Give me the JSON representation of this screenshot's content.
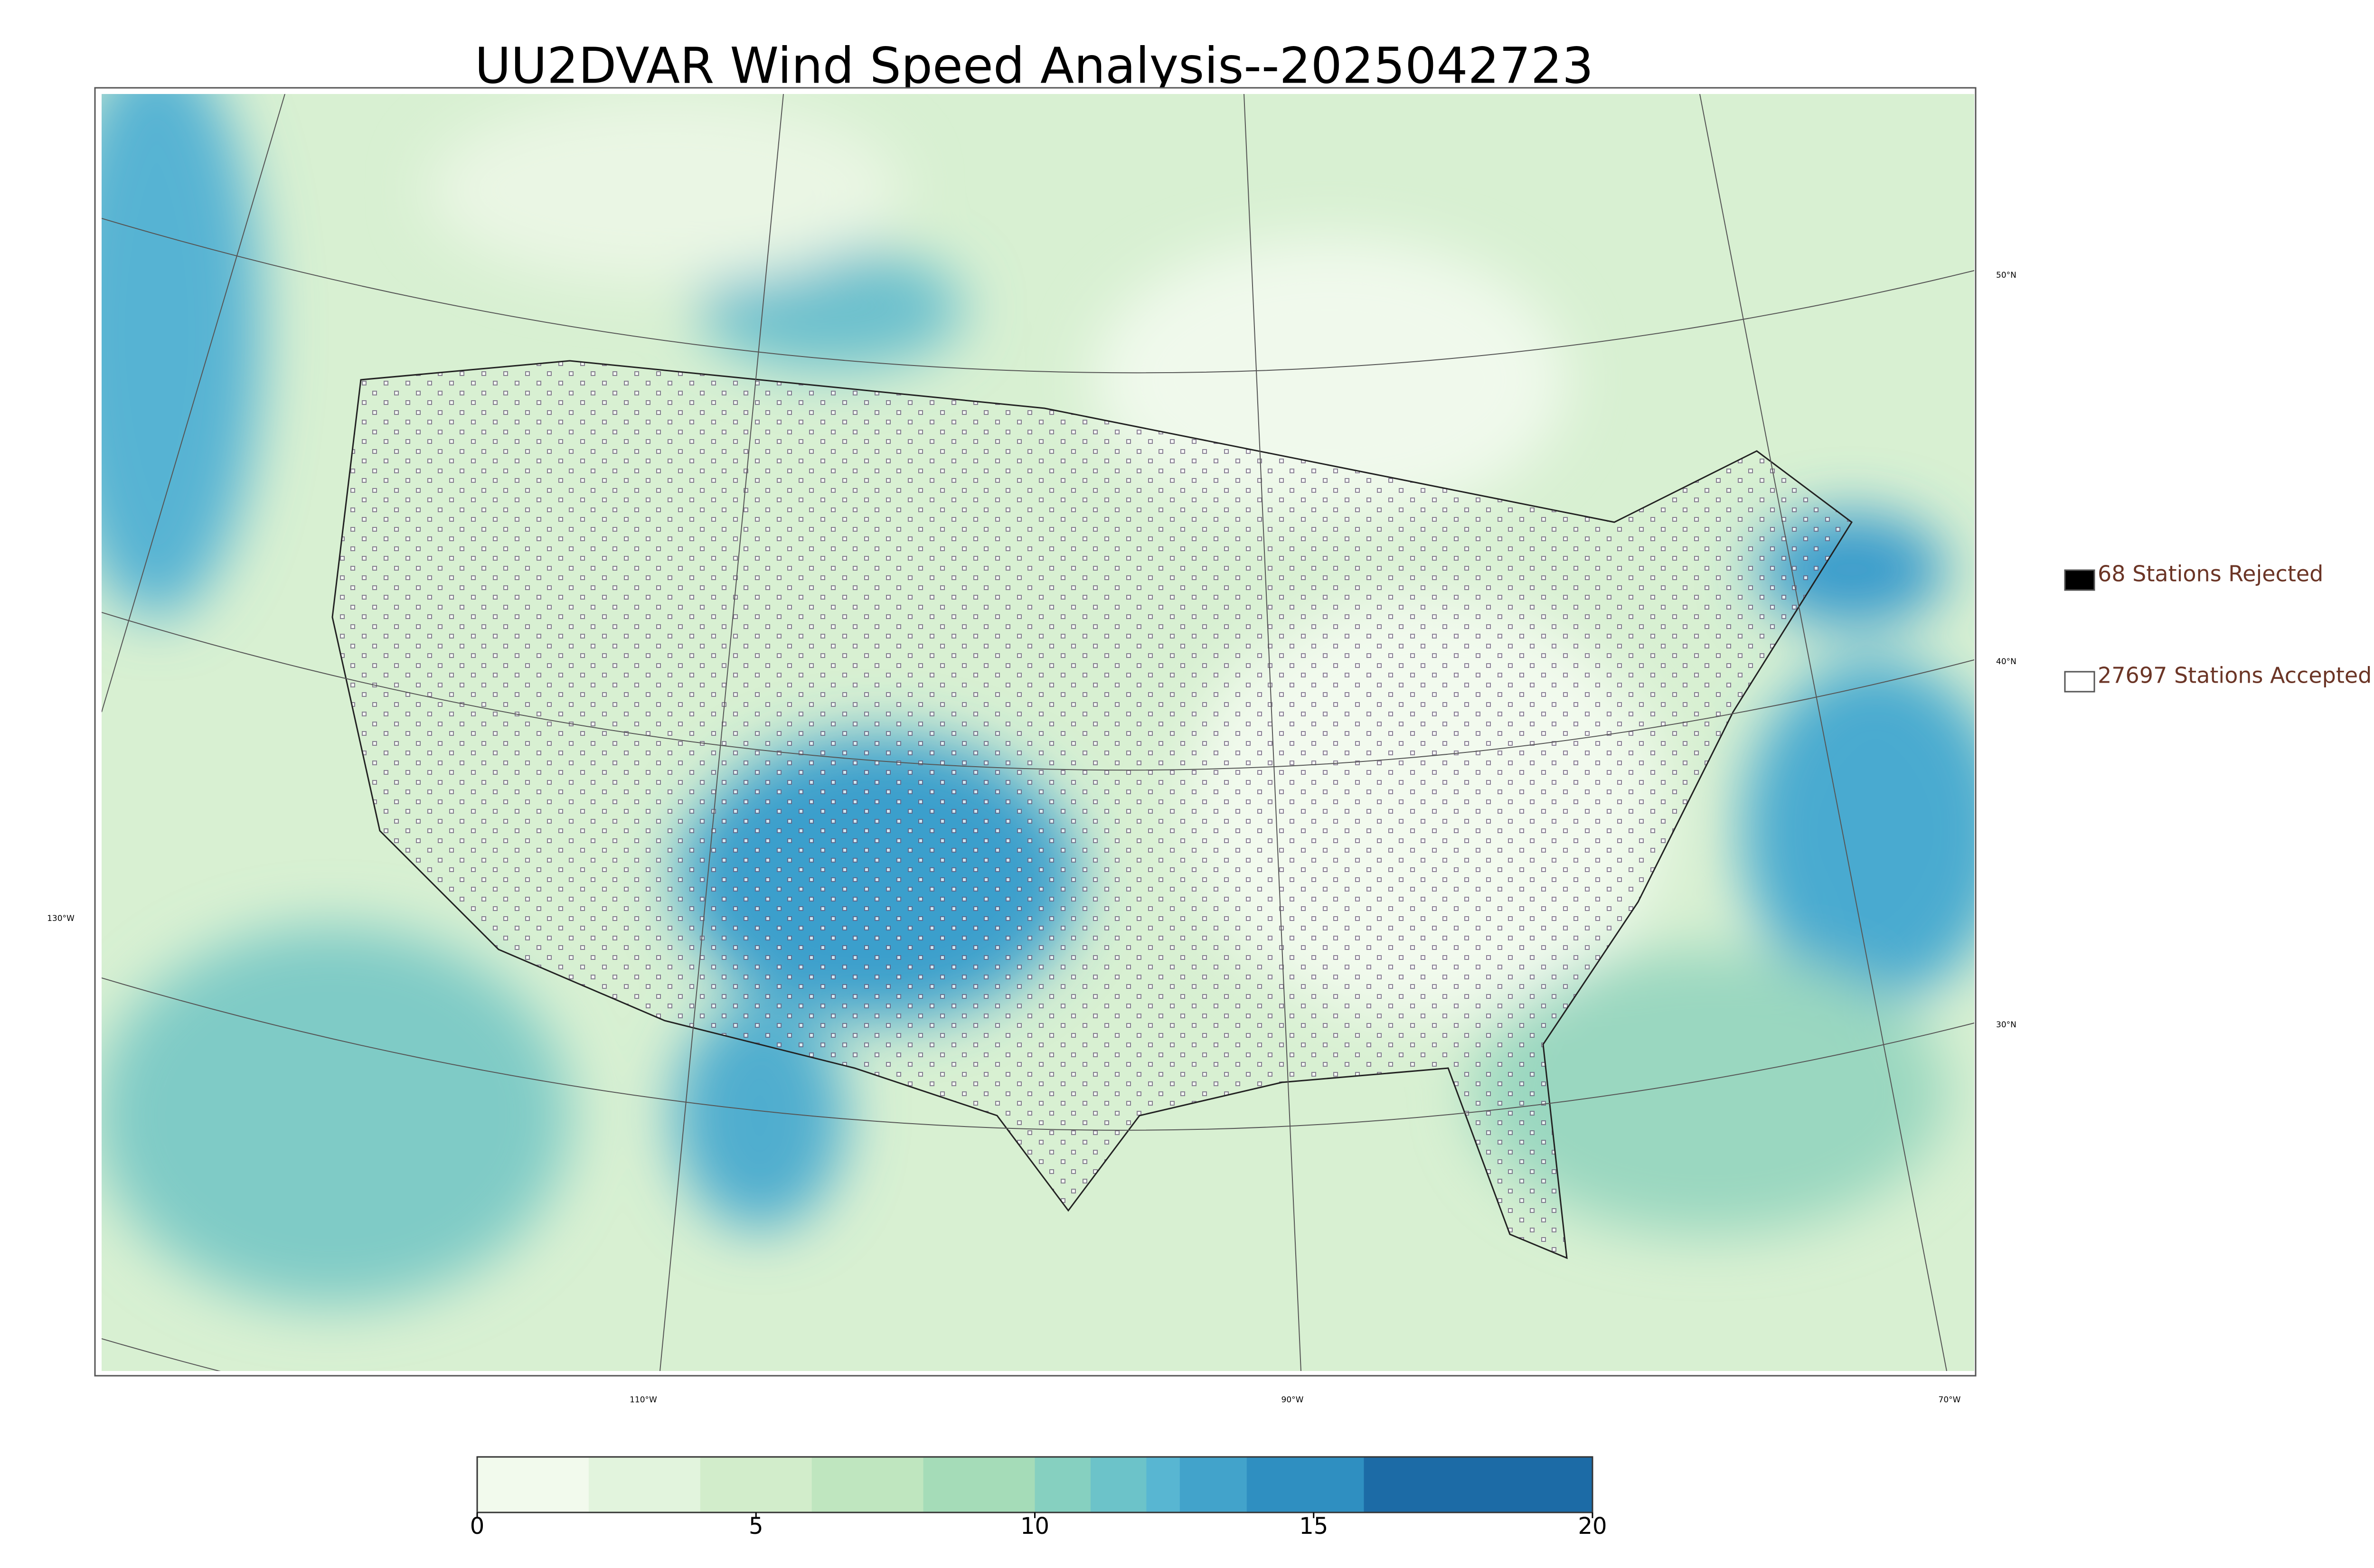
{
  "title": "UU2DVAR Wind Speed Analysis--2025042723",
  "legend": [
    {
      "label": "68 Stations Rejected",
      "color": "#000000"
    },
    {
      "label": "27697 Stations Accepted",
      "color": "#ffffff"
    }
  ],
  "graticule": {
    "lat_labels": [
      "50°N",
      "40°N",
      "30°N"
    ],
    "lon_labels": [
      "110°W",
      "90°W",
      "70°W"
    ],
    "west_label": "130°W"
  },
  "colorbar": {
    "lim": [
      0,
      20
    ],
    "ticks": [
      0,
      5,
      10,
      15,
      20
    ],
    "bounds": [
      0,
      2,
      4,
      6,
      8,
      10,
      11,
      12,
      12.6,
      13.8,
      15.9,
      20
    ],
    "colors": [
      "#f2faed",
      "#e2f4dd",
      "#d2edcb",
      "#bfe6bf",
      "#a5dcb8",
      "#86d0c0",
      "#6cc3c9",
      "#58b6d2",
      "#42a3cb",
      "#2f8fc1",
      "#1c6ba6"
    ]
  }
}
